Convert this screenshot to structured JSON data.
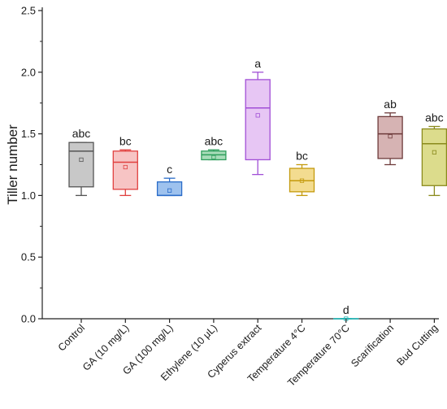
{
  "chart_data": {
    "type": "box",
    "title": "",
    "xlabel": "",
    "ylabel": "Tiller number",
    "ylim": [
      0,
      2.5
    ],
    "yticks": [
      0.0,
      0.5,
      1.0,
      1.5,
      2.0,
      2.5
    ],
    "ytick_labels": [
      "0.0",
      "0.5",
      "1.0",
      "1.5",
      "2.0",
      "2.5"
    ],
    "grid": false,
    "legend": "none",
    "categories": [
      "Control",
      "GA (10 mg/L)",
      "GA (100 mg/L)",
      "Ethylene (10 μL)",
      "Cyperus extract",
      "Temperature 4°C",
      "Temperature 70°C",
      "Scarification",
      "Bud Cutting"
    ],
    "boxes": [
      {
        "min": 1.0,
        "q1": 1.07,
        "median": 1.36,
        "q3": 1.43,
        "max": 1.43,
        "mean": 1.29,
        "label": "abc",
        "stroke": "#555555",
        "fill": "#c8c8c8"
      },
      {
        "min": 1.0,
        "q1": 1.05,
        "median": 1.27,
        "q3": 1.36,
        "max": 1.37,
        "mean": 1.23,
        "label": "bc",
        "stroke": "#e0403f",
        "fill": "#f7c4c4"
      },
      {
        "min": 1.0,
        "q1": 1.0,
        "median": 1.0,
        "q3": 1.11,
        "max": 1.14,
        "mean": 1.04,
        "label": "c",
        "stroke": "#2a6cc9",
        "fill": "#9ec2ee"
      },
      {
        "min": 1.29,
        "q1": 1.29,
        "median": 1.33,
        "q3": 1.36,
        "max": 1.37,
        "mean": 1.31,
        "label": "abc",
        "stroke": "#2f9e5c",
        "fill": "#a8dcb9"
      },
      {
        "min": 1.17,
        "q1": 1.29,
        "median": 1.71,
        "q3": 1.94,
        "max": 2.0,
        "mean": 1.65,
        "label": "a",
        "stroke": "#a14fd6",
        "fill": "#e7c6f4"
      },
      {
        "min": 1.0,
        "q1": 1.03,
        "median": 1.12,
        "q3": 1.22,
        "max": 1.25,
        "mean": 1.12,
        "label": "bc",
        "stroke": "#c49a0e",
        "fill": "#f3dc90"
      },
      {
        "min": 0.0,
        "q1": 0.0,
        "median": 0.0,
        "q3": 0.0,
        "max": 0.0,
        "mean": 0.0,
        "label": "d",
        "stroke": "#1fb5b5",
        "fill": "#9fe0e0"
      },
      {
        "min": 1.25,
        "q1": 1.3,
        "median": 1.5,
        "q3": 1.64,
        "max": 1.67,
        "mean": 1.48,
        "label": "ab",
        "stroke": "#6e3b3b",
        "fill": "#d6b3b3"
      },
      {
        "min": 1.0,
        "q1": 1.08,
        "median": 1.42,
        "q3": 1.54,
        "max": 1.56,
        "mean": 1.35,
        "label": "abc",
        "stroke": "#8a8a1c",
        "fill": "#dcdc8c"
      }
    ]
  }
}
